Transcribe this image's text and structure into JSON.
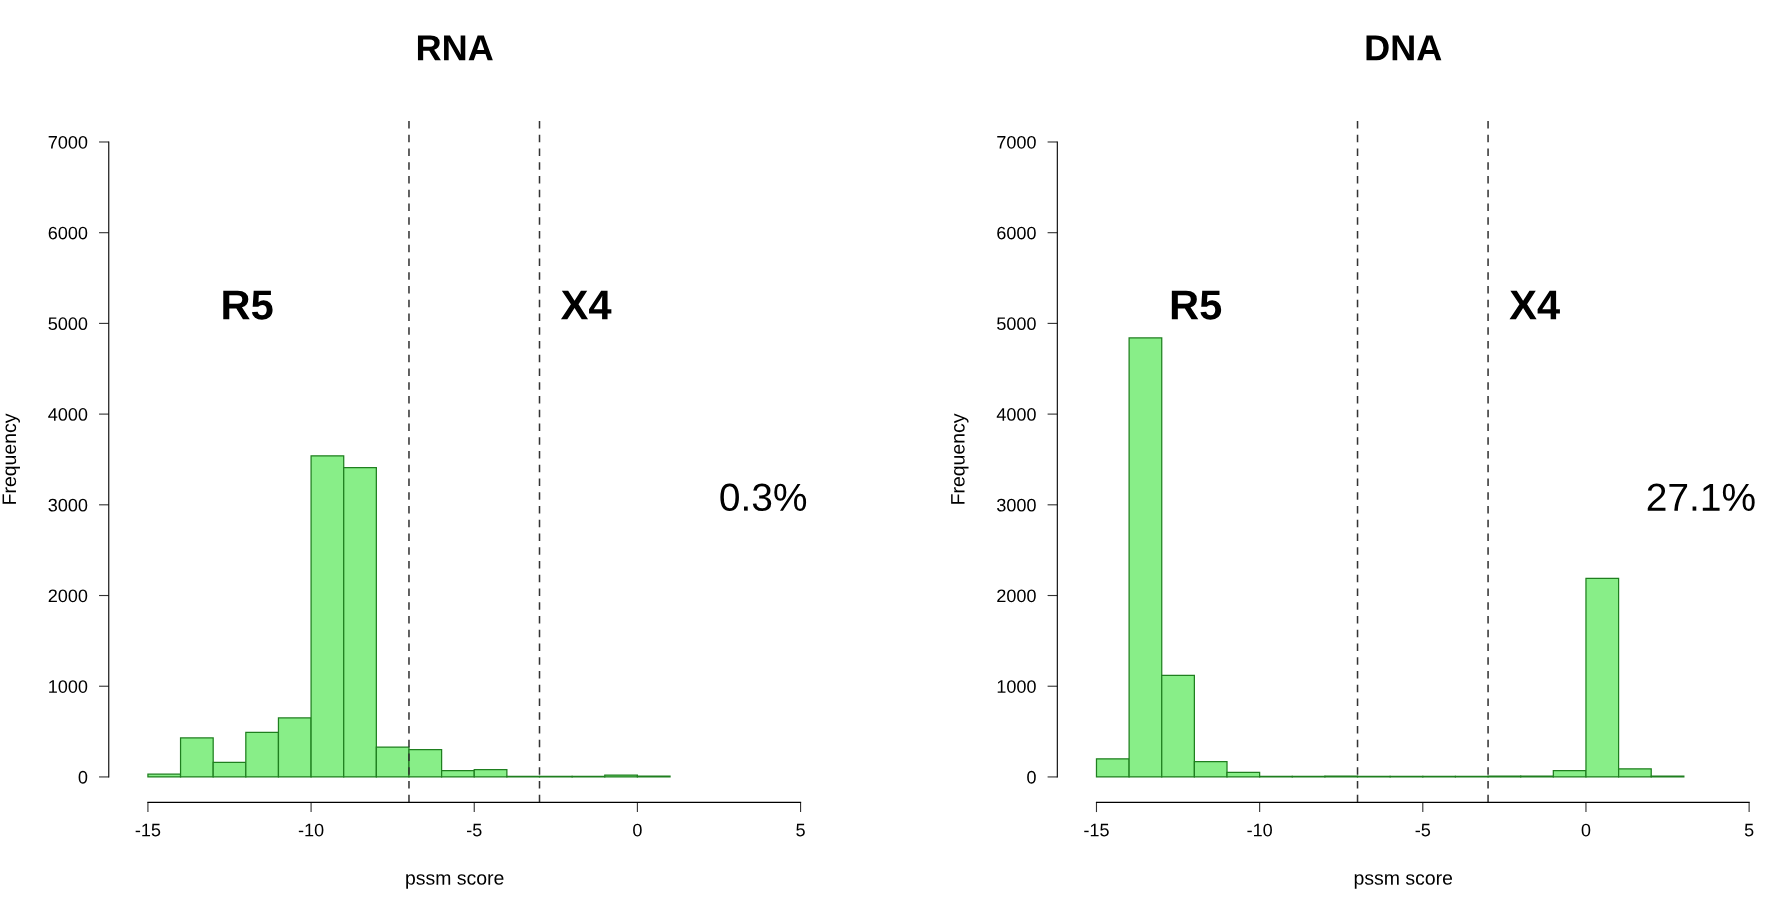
{
  "chart_data": [
    {
      "type": "histogram",
      "title": "RNA",
      "xlabel": "pssm score",
      "ylabel": "Frequency",
      "bins": [
        -15,
        -14,
        -13,
        -12,
        -11,
        -10,
        -9,
        -8,
        -7,
        -6,
        -5,
        -4,
        -3,
        -2,
        -1,
        0,
        1
      ],
      "values": [
        30,
        430,
        160,
        490,
        650,
        3540,
        3410,
        330,
        300,
        70,
        80,
        5,
        5,
        5,
        20,
        10
      ],
      "color": "#88ee88",
      "xlim": [
        -16.2,
        5
      ],
      "ylim": [
        -280,
        7280
      ],
      "xticks": [
        -15,
        -10,
        -5,
        0,
        5
      ],
      "yticks": [
        0,
        1000,
        2000,
        3000,
        4000,
        5000,
        6000,
        7000
      ],
      "ref_lines": [
        {
          "axis": "x",
          "value": -7,
          "line_style": "dashed"
        },
        {
          "axis": "x",
          "value": -3,
          "line_style": "dashed"
        }
      ],
      "annotations": [
        "R5",
        "X4",
        "0.3%"
      ],
      "grid": false
    },
    {
      "type": "histogram",
      "title": "DNA",
      "xlabel": "pssm score",
      "ylabel": "Frequency",
      "bins": [
        -15,
        -14,
        -13,
        -12,
        -11,
        -10,
        -9,
        -8,
        -7,
        -6,
        -5,
        -4,
        -3,
        -2,
        -1,
        0,
        1,
        2,
        3
      ],
      "values": [
        200,
        4840,
        1120,
        170,
        50,
        5,
        5,
        10,
        5,
        5,
        5,
        5,
        10,
        10,
        70,
        2190,
        90,
        10
      ],
      "color": "#88ee88",
      "xlim": [
        -16.2,
        5
      ],
      "ylim": [
        -280,
        7280
      ],
      "xticks": [
        -15,
        -10,
        -5,
        0,
        5
      ],
      "yticks": [
        0,
        1000,
        2000,
        3000,
        4000,
        5000,
        6000,
        7000
      ],
      "ref_lines": [
        {
          "axis": "x",
          "value": -7,
          "line_style": "dashed"
        },
        {
          "axis": "x",
          "value": -3,
          "line_style": "dashed"
        }
      ],
      "annotations": [
        "R5",
        "X4",
        "27.1%"
      ],
      "grid": false
    }
  ]
}
